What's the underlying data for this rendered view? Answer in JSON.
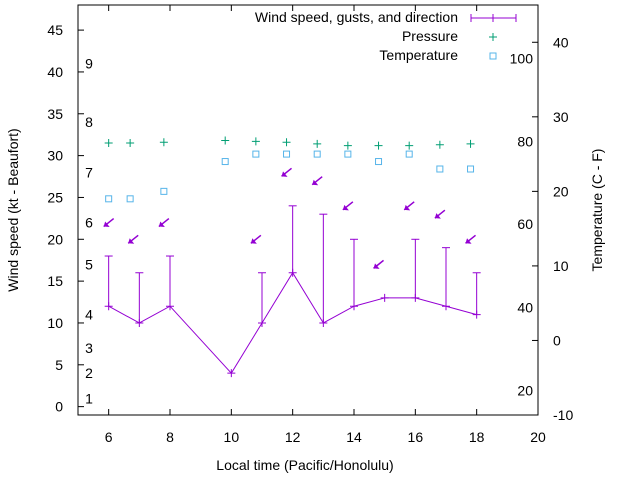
{
  "chart_data": {
    "type": "line",
    "xlabel": "Local time (Pacific/Honolulu)",
    "ylabel_left": "Wind speed (kt - Beaufort)",
    "ylabel_right": "Temperature (C - F)",
    "xlim": [
      5,
      20
    ],
    "x_ticks": [
      6,
      8,
      10,
      12,
      14,
      16,
      18,
      20
    ],
    "ylim_left": [
      -1,
      48
    ],
    "y_ticks_left": [
      0,
      5,
      10,
      15,
      20,
      25,
      30,
      35,
      40,
      45
    ],
    "beaufort_labels": [
      {
        "label": "1",
        "kt": 1
      },
      {
        "label": "2",
        "kt": 4
      },
      {
        "label": "3",
        "kt": 7
      },
      {
        "label": "4",
        "kt": 11
      },
      {
        "label": "5",
        "kt": 17
      },
      {
        "label": "6",
        "kt": 22
      },
      {
        "label": "7",
        "kt": 28
      },
      {
        "label": "8",
        "kt": 34
      },
      {
        "label": "9",
        "kt": 41
      }
    ],
    "ylim_right_c": [
      -10,
      45
    ],
    "celsius_ticks": [
      -10,
      0,
      10,
      20,
      30,
      40
    ],
    "fahrenheit_labels": [
      {
        "label": "20",
        "c": -6.7
      },
      {
        "label": "40",
        "c": 4.4
      },
      {
        "label": "60",
        "c": 15.6
      },
      {
        "label": "80",
        "c": 26.7
      },
      {
        "label": "100",
        "c": 37.8
      }
    ],
    "legend": {
      "position": "top-right",
      "entries": [
        "Wind speed, gusts, and direction",
        "Pressure",
        "Temperature"
      ]
    },
    "series": [
      {
        "name": "Wind speed, gusts, and direction",
        "color": "#9400d3",
        "x": [
          6,
          7,
          8,
          10,
          11,
          12,
          13,
          14,
          15,
          16,
          17,
          18
        ],
        "speed": [
          12,
          10,
          12,
          4,
          10,
          16,
          10,
          12,
          13,
          13,
          12,
          11
        ],
        "gust": [
          18,
          16,
          18,
          null,
          16,
          24,
          23,
          20,
          null,
          20,
          19,
          16
        ],
        "arrows": [
          {
            "x": 6.0,
            "y": 22,
            "dir": "down-left"
          },
          {
            "x": 6.8,
            "y": 20,
            "dir": "down-left"
          },
          {
            "x": 7.8,
            "y": 22,
            "dir": "down-left"
          },
          {
            "x": 10.8,
            "y": 20,
            "dir": "down-left"
          },
          {
            "x": 11.8,
            "y": 28,
            "dir": "down-left"
          },
          {
            "x": 12.8,
            "y": 27,
            "dir": "down-left"
          },
          {
            "x": 13.8,
            "y": 24,
            "dir": "down-left"
          },
          {
            "x": 14.8,
            "y": 17,
            "dir": "down-left"
          },
          {
            "x": 15.8,
            "y": 24,
            "dir": "down-left"
          },
          {
            "x": 16.8,
            "y": 23,
            "dir": "down-left"
          },
          {
            "x": 17.8,
            "y": 20,
            "dir": "down-left"
          }
        ]
      },
      {
        "name": "Pressure",
        "color": "#009e73",
        "marker": "+",
        "x": [
          6,
          6.7,
          7.8,
          9.8,
          10.8,
          11.8,
          12.8,
          13.8,
          14.8,
          15.8,
          16.8,
          17.8
        ],
        "y_kt_axis": [
          31.5,
          31.5,
          31.6,
          31.8,
          31.7,
          31.6,
          31.4,
          31.2,
          31.2,
          31.2,
          31.3,
          31.4
        ]
      },
      {
        "name": "Temperature",
        "color": "#56b4e9",
        "marker": "square",
        "x": [
          6,
          6.7,
          7.8,
          9.8,
          10.8,
          11.8,
          12.8,
          13.8,
          14.8,
          15.8,
          16.8,
          17.8
        ],
        "y_c": [
          19,
          19,
          20,
          24,
          25,
          25,
          25,
          25,
          24,
          25,
          23,
          23
        ]
      }
    ]
  }
}
